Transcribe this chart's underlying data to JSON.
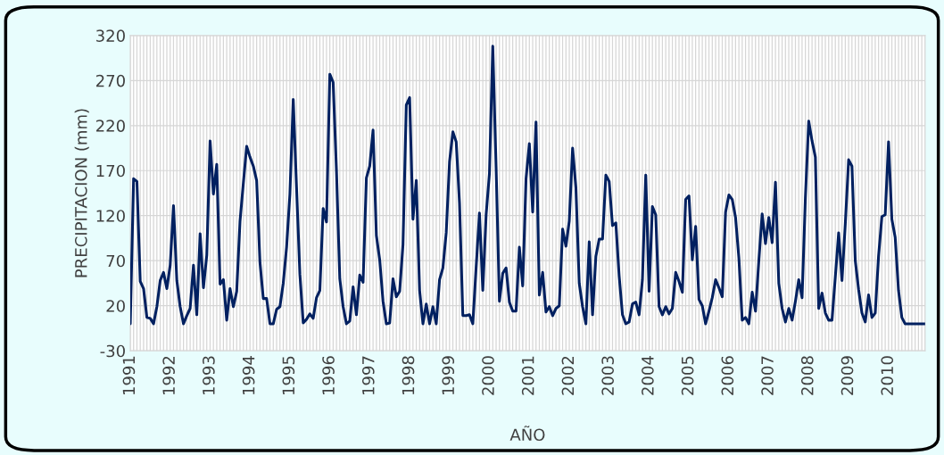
{
  "chart_data": {
    "type": "line",
    "xlabel": "AÑO",
    "ylabel": "PRECIPITACION (mm)",
    "categories": [
      "1991",
      null,
      null,
      null,
      null,
      null,
      null,
      null,
      null,
      null,
      null,
      null,
      "1992",
      null,
      null,
      null,
      null,
      null,
      null,
      null,
      null,
      null,
      null,
      null,
      "1993",
      null,
      null,
      null,
      null,
      null,
      null,
      null,
      null,
      null,
      null,
      null,
      "1994",
      null,
      null,
      null,
      null,
      null,
      null,
      null,
      null,
      null,
      null,
      null,
      "1995",
      null,
      null,
      null,
      null,
      null,
      null,
      null,
      null,
      null,
      null,
      null,
      "1996",
      null,
      null,
      null,
      null,
      null,
      null,
      null,
      null,
      null,
      null,
      null,
      "1997",
      null,
      null,
      null,
      null,
      null,
      null,
      null,
      null,
      null,
      null,
      null,
      "1998",
      null,
      null,
      null,
      null,
      null,
      null,
      null,
      null,
      null,
      null,
      null,
      "1999",
      null,
      null,
      null,
      null,
      null,
      null,
      null,
      null,
      null,
      null,
      null,
      "2000",
      null,
      null,
      null,
      null,
      null,
      null,
      null,
      null,
      null,
      null,
      null,
      "2001",
      null,
      null,
      null,
      null,
      null,
      null,
      null,
      null,
      null,
      null,
      null,
      "2002",
      null,
      null,
      null,
      null,
      null,
      null,
      null,
      null,
      null,
      null,
      null,
      "2003",
      null,
      null,
      null,
      null,
      null,
      null,
      null,
      null,
      null,
      null,
      null,
      "2004",
      null,
      null,
      null,
      null,
      null,
      null,
      null,
      null,
      null,
      null,
      null,
      "2005",
      null,
      null,
      null,
      null,
      null,
      null,
      null,
      null,
      null,
      null,
      null,
      "2006",
      null,
      null,
      null,
      null,
      null,
      null,
      null,
      null,
      null,
      null,
      null,
      "2007",
      null,
      null,
      null,
      null,
      null,
      null,
      null,
      null,
      null,
      null,
      null,
      "2008",
      null,
      null,
      null,
      null,
      null,
      null,
      null,
      null,
      null,
      null,
      null,
      "2009",
      null,
      null,
      null,
      null,
      null,
      null,
      null,
      null,
      null,
      null,
      null,
      "2010",
      null,
      null,
      null,
      null,
      null,
      null,
      null,
      null,
      null,
      null,
      null
    ],
    "series": [
      {
        "color": "#002060",
        "values": [
          0,
          161,
          158,
          47,
          39,
          7,
          6,
          0,
          19,
          48,
          57,
          39,
          65,
          131,
          48,
          19,
          0,
          9,
          17,
          65,
          10,
          100,
          40,
          76,
          203,
          144,
          177,
          44,
          49,
          4,
          39,
          19,
          36,
          114,
          156,
          197,
          185,
          175,
          159,
          68,
          28,
          28,
          0,
          0,
          16,
          19,
          45,
          85,
          144,
          249,
          151,
          55,
          1,
          5,
          11,
          6,
          29,
          37,
          128,
          113,
          277,
          268,
          170,
          50,
          19,
          0,
          3,
          41,
          10,
          54,
          46,
          162,
          175,
          215,
          98,
          71,
          25,
          0,
          1,
          50,
          30,
          36,
          88,
          243,
          251,
          116,
          159,
          37,
          0,
          22,
          0,
          19,
          0,
          49,
          62,
          101,
          180,
          213,
          202,
          134,
          9,
          9,
          10,
          0,
          63,
          123,
          37,
          121,
          167,
          308,
          174,
          25,
          56,
          62,
          24,
          14,
          14,
          85,
          42,
          161,
          200,
          124,
          224,
          32,
          57,
          13,
          19,
          9,
          17,
          20,
          105,
          86,
          114,
          195,
          151,
          45,
          19,
          0,
          91,
          10,
          75,
          94,
          94,
          165,
          158,
          109,
          112,
          53,
          10,
          0,
          2,
          22,
          24,
          10,
          49,
          165,
          36,
          130,
          121,
          19,
          10,
          19,
          11,
          17,
          57,
          47,
          35,
          138,
          142,
          71,
          108,
          27,
          20,
          0,
          14,
          29,
          49,
          40,
          30,
          124,
          143,
          138,
          118,
          73,
          4,
          7,
          0,
          35,
          14,
          70,
          122,
          89,
          118,
          90,
          157,
          45,
          17,
          2,
          17,
          4,
          25,
          49,
          29,
          140,
          225,
          203,
          185,
          17,
          34,
          12,
          4,
          4,
          52,
          101,
          48,
          111,
          182,
          175,
          70,
          38,
          12,
          2,
          32,
          7,
          12,
          75,
          119,
          121,
          202,
          116,
          96,
          37,
          7,
          0,
          0,
          0,
          0,
          0,
          0,
          0
        ]
      }
    ],
    "ylim": [
      -30,
      320
    ],
    "yticks": [
      -30,
      20,
      70,
      120,
      170,
      220,
      270,
      320
    ],
    "grid": true,
    "legend": false,
    "marker": "none",
    "line_style": "solid"
  }
}
